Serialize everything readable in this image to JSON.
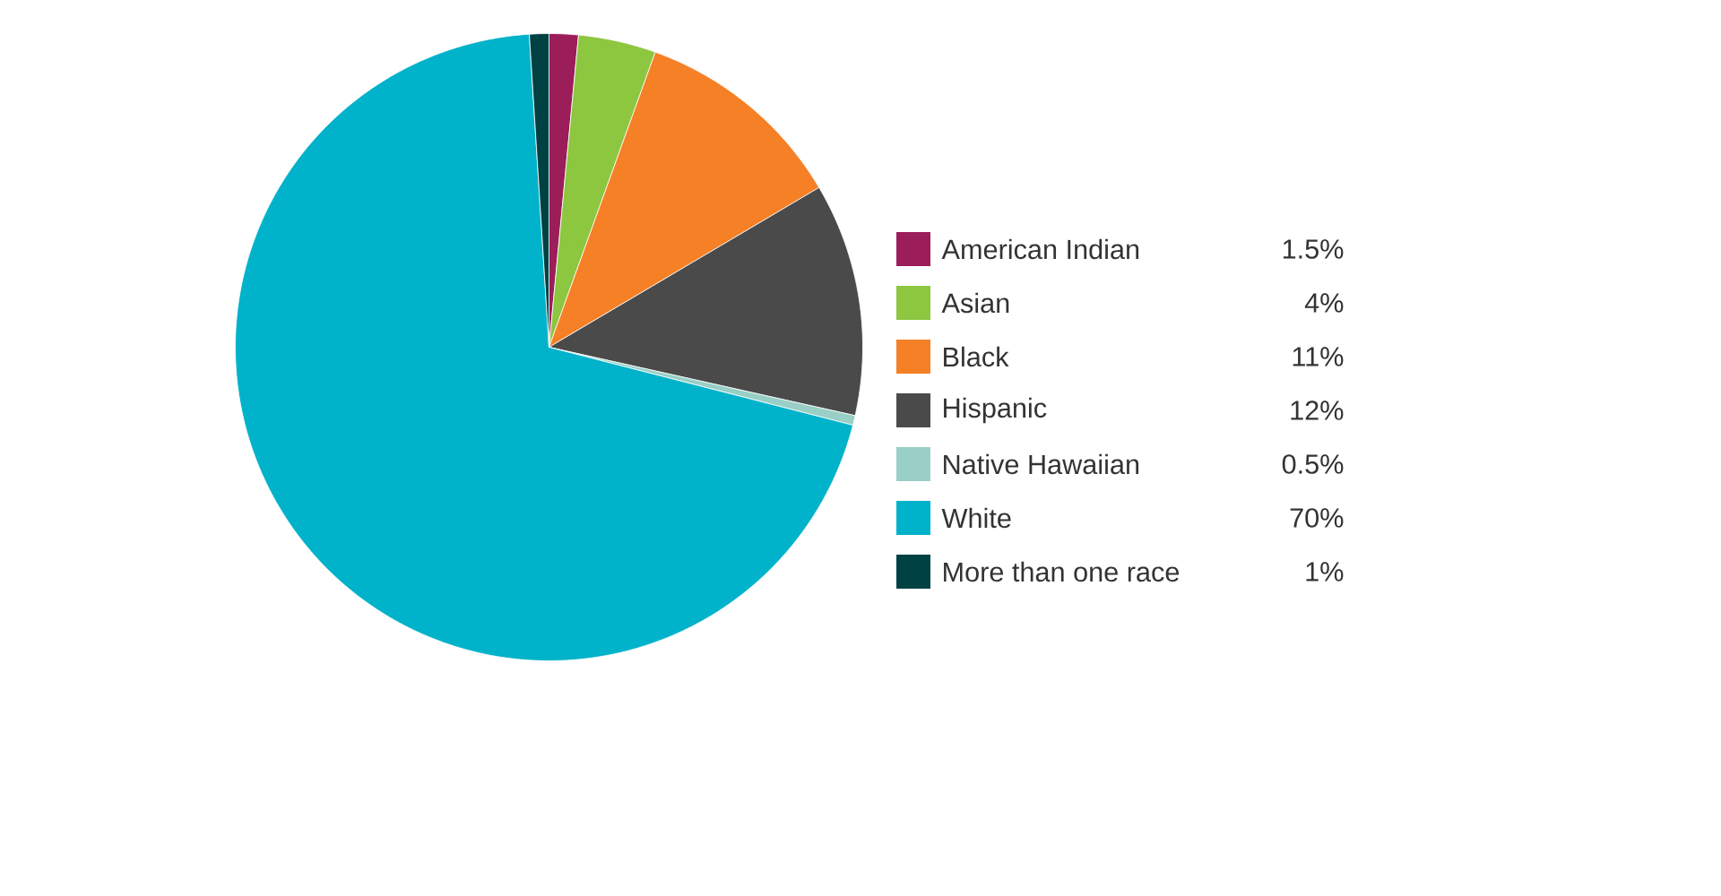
{
  "chart_data": {
    "type": "pie",
    "categories": [
      "American Indian",
      "Asian",
      "Black",
      "Hispanic",
      "Native Hawaiian",
      "White",
      "More than one race"
    ],
    "values": [
      1.5,
      4,
      11,
      12,
      0.5,
      70,
      1
    ],
    "value_labels": [
      "1.5%",
      "4%",
      "11%",
      "12%",
      "0.5%",
      "70%",
      "1%"
    ],
    "colors": [
      "#9b1d5a",
      "#8dc63f",
      "#f58025",
      "#4a4a4a",
      "#99cfc6",
      "#00b2ca",
      "#004143"
    ],
    "legend": "right"
  }
}
